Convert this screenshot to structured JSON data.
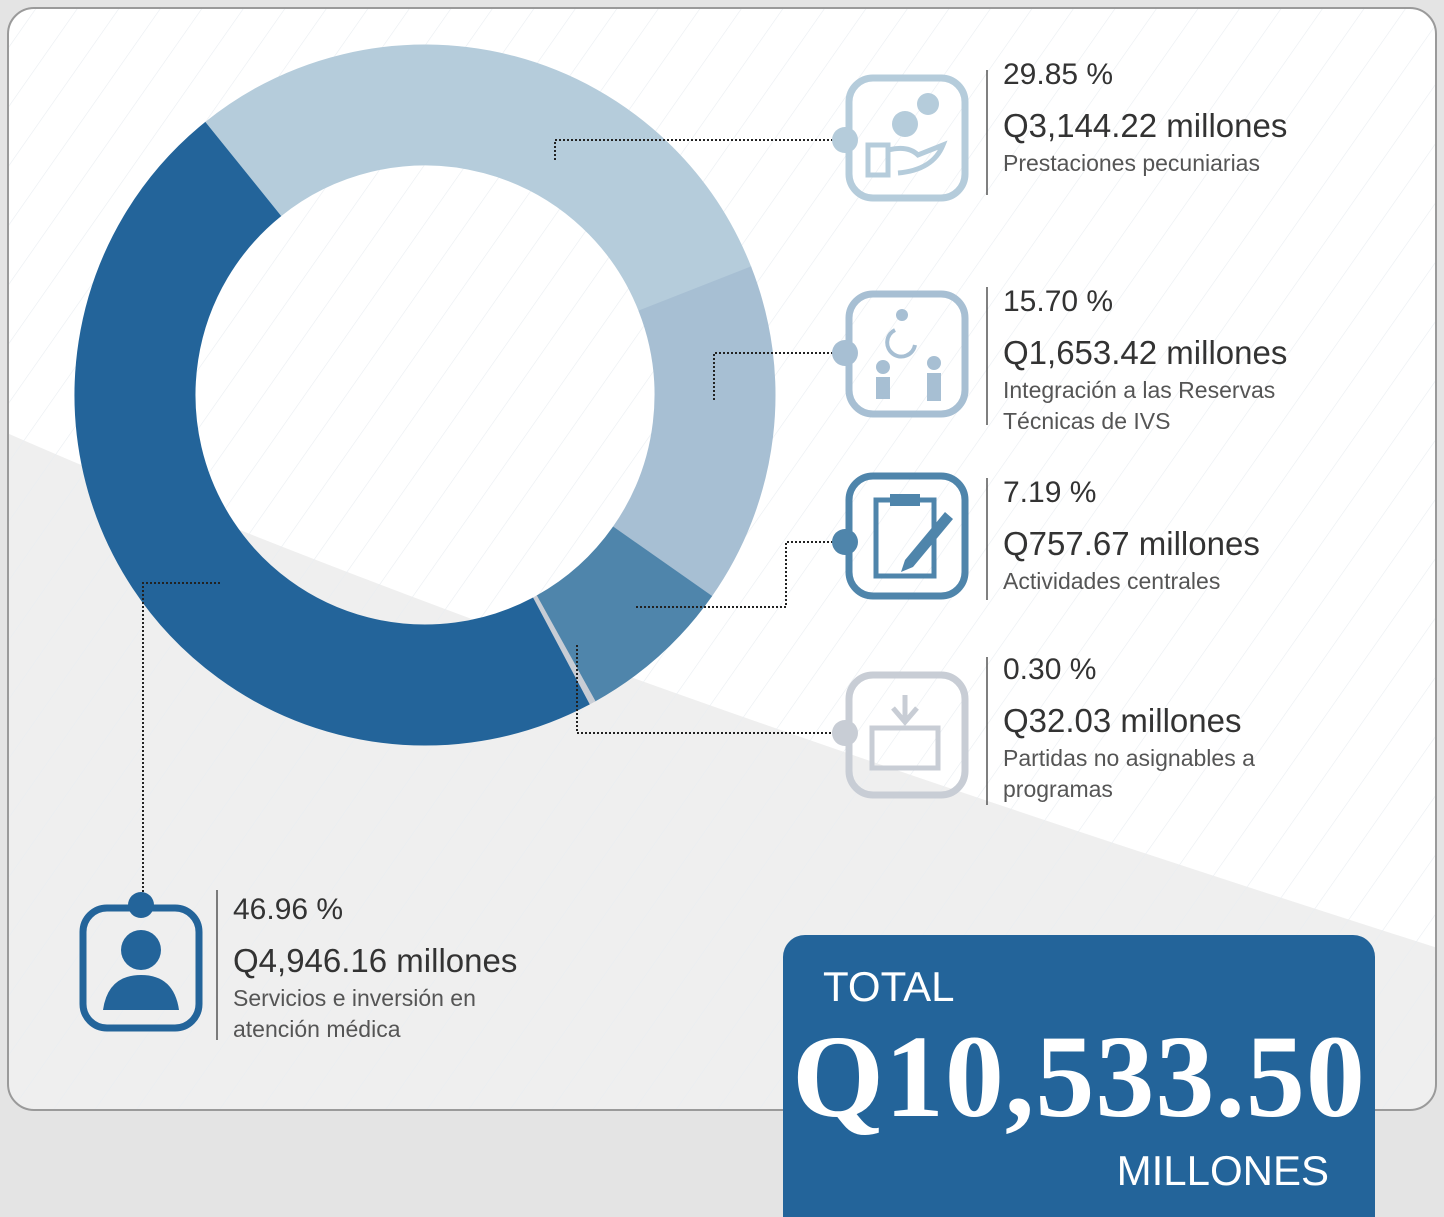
{
  "chart_data": {
    "type": "pie",
    "categories": [
      "Prestaciones pecuniarias",
      "Integración a las Reservas Técnicas de IVS",
      "Actividades centrales",
      "Partidas no asignables a programas",
      "Servicios e inversión en atención médica"
    ],
    "values": [
      29.85,
      15.7,
      7.19,
      0.3,
      46.96
    ],
    "value_labels": [
      "29.85 %",
      "15.70 %",
      "7.19 %",
      "0.30 %",
      "46.96 %"
    ],
    "amount_labels": [
      "Q3,144.22 millones",
      "Q1,653.42 millones",
      "Q757.67 millones",
      "Q32.03 millones",
      "Q4,946.16 millones"
    ],
    "colors": [
      "#b5ccdb",
      "#a7bfd3",
      "#4f85ab",
      "#c8cdd5",
      "#23649a"
    ],
    "total": {
      "title": "TOTAL",
      "value": "Q10,533.50",
      "unit": "MILLONES"
    }
  }
}
